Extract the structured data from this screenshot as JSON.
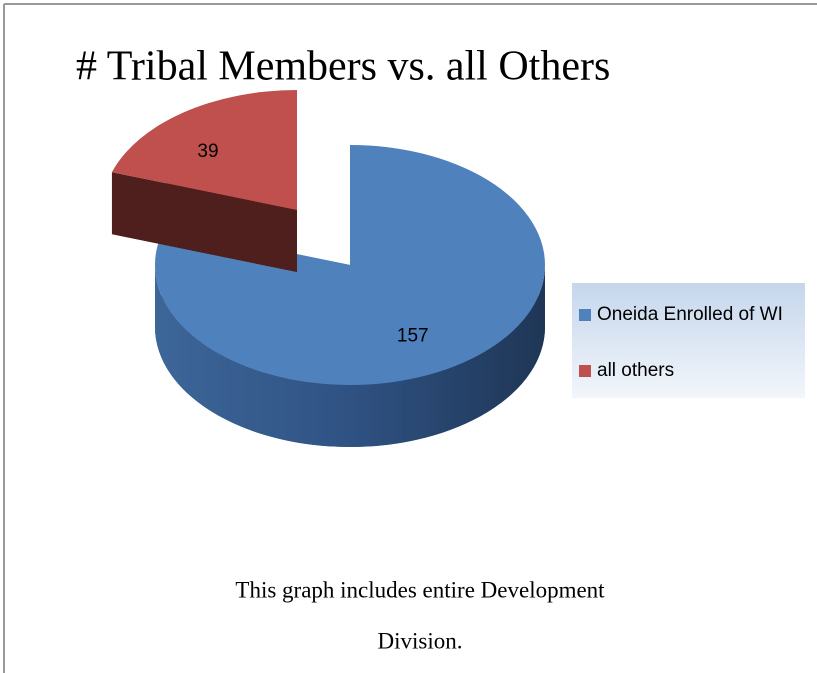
{
  "chart_data": {
    "type": "pie",
    "title": "# Tribal Members vs. all Others",
    "categories": [
      "Oneida Enrolled of WI",
      "all others"
    ],
    "values": [
      157,
      39
    ],
    "colors": [
      "#4f81bd",
      "#c0504d"
    ],
    "side_colors": [
      "#2f4f7a",
      "#4f1f1e"
    ],
    "exploded": [
      false,
      true
    ],
    "legend": "right",
    "notes": [
      "This graph includes entire Development",
      "Division."
    ]
  }
}
